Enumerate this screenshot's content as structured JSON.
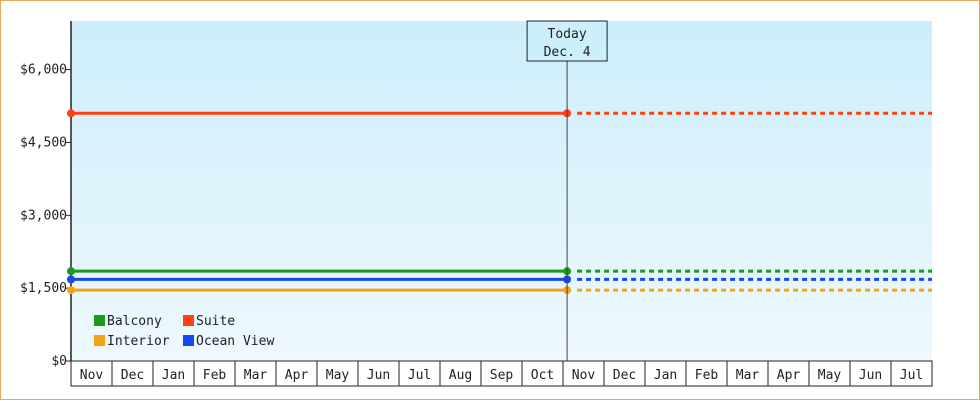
{
  "chart_data": {
    "type": "line",
    "title": "",
    "xlabel": "",
    "ylabel": "",
    "ylim": [
      0,
      7000
    ],
    "y_ticks": [
      0,
      1500,
      3000,
      4500,
      6000
    ],
    "y_tick_labels": [
      "$0",
      "$1,500",
      "$3,000",
      "$4,500",
      "$6,000"
    ],
    "x_months": [
      "Nov",
      "Dec",
      "Jan",
      "Feb",
      "Mar",
      "Apr",
      "May",
      "Jun",
      "Jul",
      "Aug",
      "Sep",
      "Oct",
      "Nov",
      "Dec",
      "Jan",
      "Feb",
      "Mar",
      "Apr",
      "May",
      "Jun",
      "Jul"
    ],
    "today_marker": {
      "line1": "Today",
      "line2": "Dec. 4",
      "month_index": 12.1
    },
    "background": {
      "top_color": "#cdeefb",
      "bottom_color": "#eef9fd"
    },
    "series": [
      {
        "name": "Balcony",
        "color": "#1a9a1a",
        "value": 1850,
        "start_month_index": 0,
        "end_month_index": 12.1
      },
      {
        "name": "Suite",
        "color": "#ff4010",
        "value": 5100,
        "start_month_index": 0,
        "end_month_index": 12.1
      },
      {
        "name": "Interior",
        "color": "#f4a216",
        "value": 1460,
        "start_month_index": 0,
        "end_month_index": 12.1
      },
      {
        "name": "Ocean View",
        "color": "#1448f0",
        "value": 1680,
        "start_month_index": 0,
        "end_month_index": 12.1
      }
    ],
    "grid": false,
    "legend_position": "bottom-left"
  }
}
